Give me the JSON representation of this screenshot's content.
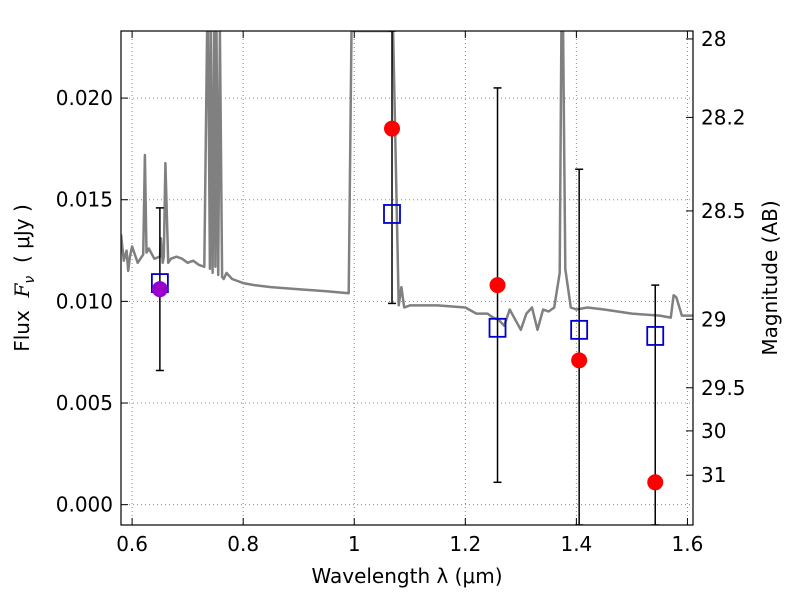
{
  "chart_data": {
    "type": "scatter",
    "xlabel": "Wavelength  λ (μm)",
    "ylabel": "Flux  F_ν  ( μJy )",
    "ylabel_parts": {
      "pre": "Flux  ",
      "var": "F",
      "sub": "ν",
      "post": "  ( μJy )"
    },
    "y2label": "Magnitude (AB)",
    "xlim": [
      0.58,
      1.61
    ],
    "ylim": [
      -0.001,
      0.0233
    ],
    "grid": true,
    "x_ticks": [
      0.6,
      0.8,
      1.0,
      1.2,
      1.4,
      1.6
    ],
    "x_tick_labels": [
      "0.6",
      "0.8",
      "1",
      "1.2",
      "1.4",
      "1.6"
    ],
    "y_ticks": [
      0.0,
      0.005,
      0.01,
      0.015,
      0.02
    ],
    "y_tick_labels": [
      "0.000",
      "0.005",
      "0.010",
      "0.015",
      "0.020"
    ],
    "mag_ticks": [
      {
        "label": "28",
        "flux": 0.02291
      },
      {
        "label": "28.2",
        "flux": 0.01905
      },
      {
        "label": "28.5",
        "flux": 0.01445
      },
      {
        "label": "29",
        "flux": 0.00912
      },
      {
        "label": "29.5",
        "flux": 0.00575
      },
      {
        "label": "30",
        "flux": 0.00363
      },
      {
        "label": "31",
        "flux": 0.00145
      }
    ],
    "colors": {
      "model": "#808080",
      "observed": "#ff0000",
      "model_band": "#0000cc",
      "overlap": "#9900cc",
      "errorbar": "#000000",
      "grid": "#888888"
    },
    "series": [
      {
        "name": "model spectrum",
        "kind": "line",
        "x": [
          0.58,
          0.585,
          0.59,
          0.593,
          0.596,
          0.6,
          0.605,
          0.61,
          0.615,
          0.62,
          0.623,
          0.626,
          0.63,
          0.64,
          0.65,
          0.652,
          0.655,
          0.657,
          0.66,
          0.665,
          0.67,
          0.68,
          0.69,
          0.7,
          0.71,
          0.72,
          0.73,
          0.735,
          0.737,
          0.74,
          0.742,
          0.745,
          0.748,
          0.75,
          0.752,
          0.755,
          0.758,
          0.762,
          0.765,
          0.77,
          0.78,
          0.8,
          0.82,
          0.85,
          0.9,
          0.95,
          0.99,
          0.995,
          0.998,
          1.001,
          1.005,
          1.01,
          1.02,
          1.03,
          1.035,
          1.04,
          1.05,
          1.06,
          1.07,
          1.08,
          1.085,
          1.09,
          1.1,
          1.15,
          1.2,
          1.22,
          1.24,
          1.25,
          1.26,
          1.27,
          1.28,
          1.3,
          1.31,
          1.32,
          1.33,
          1.34,
          1.35,
          1.36,
          1.37,
          1.373,
          1.376,
          1.38,
          1.39,
          1.4,
          1.42,
          1.45,
          1.5,
          1.55,
          1.57,
          1.575,
          1.58,
          1.59,
          1.6,
          1.61
        ],
        "y": [
          0.0133,
          0.012,
          0.0125,
          0.0115,
          0.0122,
          0.0127,
          0.0123,
          0.0119,
          0.0121,
          0.0123,
          0.0172,
          0.0124,
          0.0126,
          0.0121,
          0.0122,
          0.0131,
          0.0119,
          0.0122,
          0.0168,
          0.0119,
          0.0121,
          0.0122,
          0.0121,
          0.0119,
          0.012,
          0.0118,
          0.0117,
          0.0233,
          0.0233,
          0.0116,
          0.0233,
          0.0114,
          0.0233,
          0.0117,
          0.0233,
          0.0113,
          0.0233,
          0.0112,
          0.0111,
          0.0114,
          0.0111,
          0.0109,
          0.0108,
          0.0107,
          0.0106,
          0.0105,
          0.0104,
          0.0233,
          0.0233,
          0.0233,
          0.0233,
          0.0233,
          0.0233,
          0.0233,
          0.0233,
          0.0233,
          0.0233,
          0.0233,
          0.0233,
          0.0098,
          0.0107,
          0.0097,
          0.0098,
          0.0098,
          0.0097,
          0.0094,
          0.0094,
          0.0092,
          0.0091,
          0.0088,
          0.0096,
          0.0086,
          0.0094,
          0.0097,
          0.0086,
          0.0096,
          0.0095,
          0.0097,
          0.0114,
          0.0233,
          0.0233,
          0.0116,
          0.0097,
          0.0096,
          0.0097,
          0.0096,
          0.0094,
          0.0093,
          0.0092,
          0.0103,
          0.0102,
          0.0093,
          0.0093,
          0.0093
        ]
      },
      {
        "name": "model band flux",
        "kind": "open-square",
        "x": [
          0.65,
          1.068,
          1.258,
          1.405,
          1.542
        ],
        "y": [
          0.0109,
          0.0143,
          0.0087,
          0.0086,
          0.0083
        ]
      },
      {
        "name": "observed flux",
        "kind": "filled-circle",
        "x": [
          0.65,
          1.068,
          1.258,
          1.405,
          1.542
        ],
        "y": [
          0.0106,
          0.0185,
          0.0108,
          0.0071,
          0.0011
        ],
        "err_lo": [
          0.0066,
          0.0099,
          0.0011,
          -0.001,
          -0.001
        ],
        "err_hi": [
          0.0146,
          0.0233,
          0.0205,
          0.0165,
          0.0108
        ]
      }
    ]
  }
}
